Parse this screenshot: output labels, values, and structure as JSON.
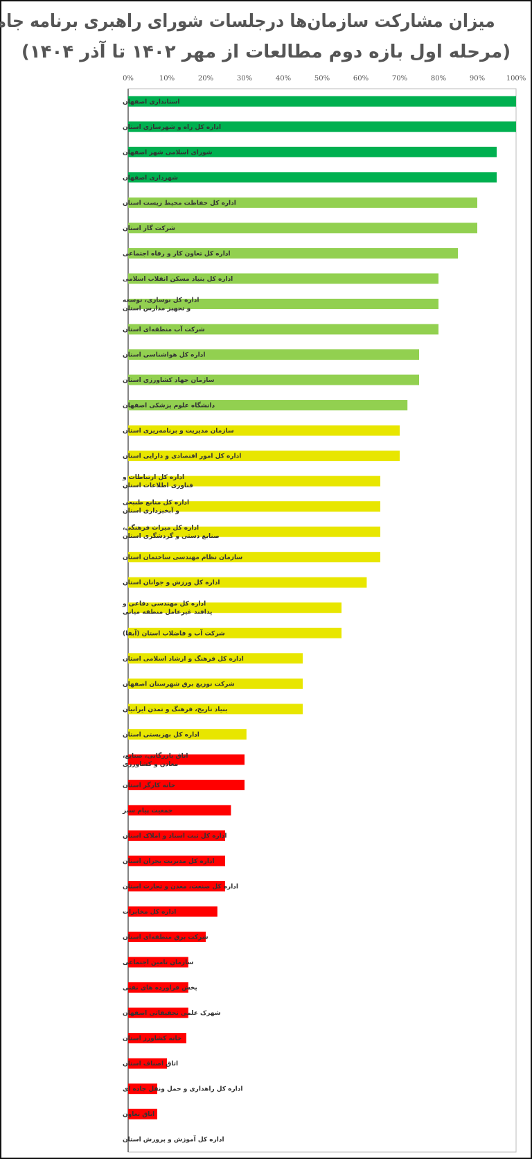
{
  "chart_data": {
    "type": "bar",
    "orientation": "horizontal",
    "title": "میزان مشارکت سازمان‌ها درجلسات شورای راهبری برنامه جامع",
    "subtitle": "(مرحله اول بازه دوم مطالعات از  مهر ۱۴۰۲ تا آذر ۱۴۰۴)",
    "xlabel": "",
    "ylabel": "",
    "xlim": [
      0,
      100
    ],
    "x_ticks": [
      "0%",
      "10%",
      "20%",
      "30%",
      "40%",
      "50%",
      "60%",
      "70%",
      "80%",
      "90%",
      "100%"
    ],
    "x_axis_position": "top",
    "grid": false,
    "legend": "none",
    "colors": {
      "top": "#00b050",
      "high": "#92d050",
      "mid": "#e8e600",
      "low": "#ff0000"
    },
    "categories": [
      "استانداری اصفهان",
      "اداره کل راه و شهرسازی استان",
      "شورای اسلامی شهر اصفهان",
      "شهرداری اصفهان",
      "اداره کل حفاظت محیط زیست استان",
      "شرکت گاز استان",
      "اداره کل تعاون کار و رفاه اجتماعی",
      "اداره کل بنیاد مسکن انقلاب اسلامی",
      "اداره کل نوسازی، توسعه و تجهیز مدارس استان",
      "شرکت آب منطقه‌ای استان",
      "اداره کل هواشناسی استان",
      "سازمان جهاد کشاورزی استان",
      "دانشگاه علوم پزشکی اصفهان",
      "سازمان مدیریت و برنامه‌ریزی استان",
      "اداره کل امور اقتصادی و دارایی استان",
      "اداره کل ارتباطات و فناوری اطلاعات استان",
      "اداره کل منابع طبیعی و آبخیزداری استان",
      "اداره کل میراث فرهنگی، صنایع دستی و گردشگری استان",
      "سازمان نظام مهندسی ساختمان استان",
      "اداره کل ورزش و جوانان استان",
      "اداره کل مهندسی دفاعی و پدافند غیرعامل منطقه میانی",
      "شرکت آب و فاضلاب استان (آبفا)",
      "اداره کل فرهنگ و ارشاد اسلامی استان",
      "شرکت توزیع برق شهرستان اصفهان",
      "بنیاد تاریخ، فرهنگ و تمدن ایرانیان",
      "اداره کل بهزیستی استان",
      "اتاق بازرگانی، صنایع، معادن و کشاورزی",
      "خانه کارگر استان",
      "جمعیت پیام سبز",
      "اداره کل ثبت اسناد و املاک استان",
      "اداره کل مدیریت بحران استان",
      "اداره کل صنعت، معدن و تجارت استان",
      "اداره کل مخابرات",
      "شرکت برق منطقه‌ای استان",
      "سازمان تامین اجتماعی",
      "پخش فراورده های نفتی",
      "شهرک علمی تحقیقاتی اصفهان",
      "خانه کشاورز استان",
      "اتاق اصناف استان",
      "اداره کل راهداری و حمل ونقل جاده ای",
      "اتاق تعاون",
      "اداره کل آموزش و پرورش استان"
    ],
    "values": [
      100,
      100,
      95,
      95,
      90,
      90,
      85,
      80,
      80,
      80,
      75,
      75,
      72,
      70,
      70,
      65,
      65,
      65,
      65,
      61.5,
      55,
      55,
      45,
      45,
      45,
      30.5,
      30,
      30,
      26.5,
      25,
      25,
      25,
      23,
      20,
      15.5,
      15.5,
      15.5,
      15,
      10,
      7.5,
      7.5,
      0
    ],
    "color_groups": [
      "top",
      "top",
      "top",
      "top",
      "high",
      "high",
      "high",
      "high",
      "high",
      "high",
      "high",
      "high",
      "high",
      "mid",
      "mid",
      "mid",
      "mid",
      "mid",
      "mid",
      "mid",
      "mid",
      "mid",
      "mid",
      "mid",
      "mid",
      "mid",
      "low",
      "low",
      "low",
      "low",
      "low",
      "low",
      "low",
      "low",
      "low",
      "low",
      "low",
      "low",
      "low",
      "low",
      "low",
      "low"
    ]
  }
}
